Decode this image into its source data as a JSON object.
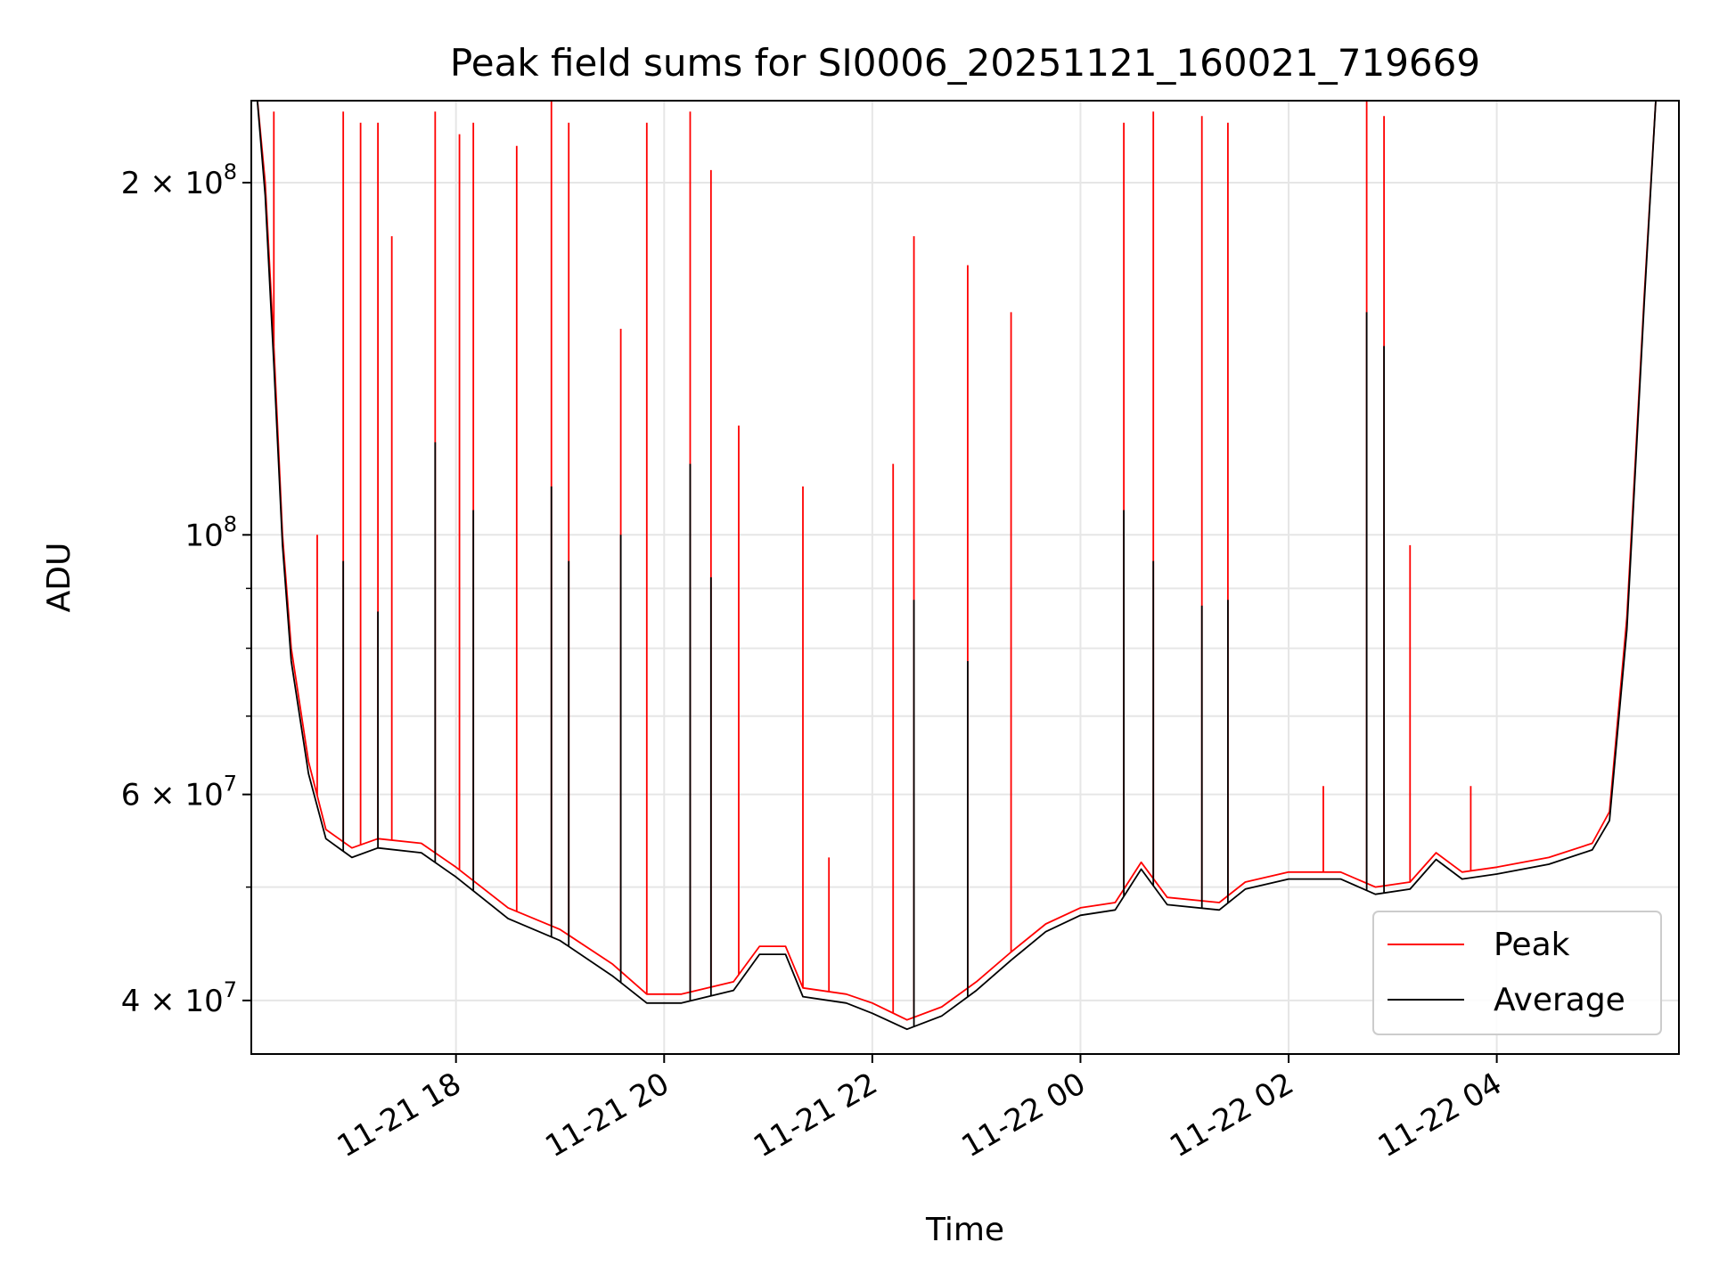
{
  "chart_data": {
    "type": "line",
    "title": "Peak field sums for SI0006_20251121_160021_719669",
    "xlabel": "Time",
    "ylabel": "ADU",
    "yscale": "log",
    "ylim": [
      36000000,
      235000000
    ],
    "xlim": [
      "2025-11-21 16:02",
      "2025-11-22 05:45"
    ],
    "grid": true,
    "legend_position": "lower-right",
    "x_ticks": [
      {
        "x": "2025-11-21 18:00",
        "label": "11-21 18"
      },
      {
        "x": "2025-11-21 20:00",
        "label": "11-21 20"
      },
      {
        "x": "2025-11-21 22:00",
        "label": "11-21 22"
      },
      {
        "x": "2025-11-22 00:00",
        "label": "11-22 00"
      },
      {
        "x": "2025-11-22 02:00",
        "label": "11-22 02"
      },
      {
        "x": "2025-11-22 04:00",
        "label": "11-22 04"
      }
    ],
    "y_ticks": [
      {
        "value": 40000000,
        "mantissa": "4",
        "exp": "7"
      },
      {
        "value": 60000000,
        "mantissa": "6",
        "exp": "7"
      },
      {
        "value": 100000000,
        "mantissa": "",
        "exp": "8"
      },
      {
        "value": 200000000,
        "mantissa": "2",
        "exp": "8"
      }
    ],
    "y_minor": [
      50000000,
      70000000,
      80000000,
      90000000
    ],
    "series": [
      {
        "name": "Peak",
        "color": "#ff0000",
        "baseline": [
          [
            "2025-11-21 16:05",
            240000000
          ],
          [
            "2025-11-21 16:10",
            200000000
          ],
          [
            "2025-11-21 16:15",
            145000000
          ],
          [
            "2025-11-21 16:20",
            100000000
          ],
          [
            "2025-11-21 16:25",
            80000000
          ],
          [
            "2025-11-21 16:35",
            64000000
          ],
          [
            "2025-11-21 16:45",
            56000000
          ],
          [
            "2025-11-21 17:00",
            54000000
          ],
          [
            "2025-11-21 17:15",
            55000000
          ],
          [
            "2025-11-21 17:40",
            54500000
          ],
          [
            "2025-11-21 18:00",
            52000000
          ],
          [
            "2025-11-21 18:30",
            48000000
          ],
          [
            "2025-11-21 19:00",
            46000000
          ],
          [
            "2025-11-21 19:30",
            43000000
          ],
          [
            "2025-11-21 19:50",
            40500000
          ],
          [
            "2025-11-21 20:10",
            40500000
          ],
          [
            "2025-11-21 20:40",
            41500000
          ],
          [
            "2025-11-21 20:55",
            44500000
          ],
          [
            "2025-11-21 21:10",
            44500000
          ],
          [
            "2025-11-21 21:20",
            41000000
          ],
          [
            "2025-11-21 21:45",
            40500000
          ],
          [
            "2025-11-21 22:00",
            39800000
          ],
          [
            "2025-11-21 22:20",
            38500000
          ],
          [
            "2025-11-21 22:40",
            39500000
          ],
          [
            "2025-11-21 23:00",
            41500000
          ],
          [
            "2025-11-21 23:20",
            44000000
          ],
          [
            "2025-11-21 23:40",
            46500000
          ],
          [
            "2025-11-22 00:00",
            48000000
          ],
          [
            "2025-11-22 00:20",
            48500000
          ],
          [
            "2025-11-22 00:35",
            52500000
          ],
          [
            "2025-11-22 00:50",
            49000000
          ],
          [
            "2025-11-22 01:20",
            48500000
          ],
          [
            "2025-11-22 01:35",
            50500000
          ],
          [
            "2025-11-22 02:00",
            51500000
          ],
          [
            "2025-11-22 02:30",
            51500000
          ],
          [
            "2025-11-22 02:50",
            50000000
          ],
          [
            "2025-11-22 03:10",
            50500000
          ],
          [
            "2025-11-22 03:25",
            53500000
          ],
          [
            "2025-11-22 03:40",
            51500000
          ],
          [
            "2025-11-22 04:00",
            52000000
          ],
          [
            "2025-11-22 04:30",
            53000000
          ],
          [
            "2025-11-22 04:55",
            54500000
          ],
          [
            "2025-11-22 05:05",
            58000000
          ],
          [
            "2025-11-22 05:15",
            85000000
          ],
          [
            "2025-11-22 05:25",
            160000000
          ],
          [
            "2025-11-22 05:32",
            240000000
          ]
        ],
        "spikes": [
          [
            "2025-11-21 16:15",
            230000000
          ],
          [
            "2025-11-21 16:40",
            100000000
          ],
          [
            "2025-11-21 16:55",
            230000000
          ],
          [
            "2025-11-21 17:05",
            225000000
          ],
          [
            "2025-11-21 17:15",
            225000000
          ],
          [
            "2025-11-21 17:23",
            180000000
          ],
          [
            "2025-11-21 17:48",
            230000000
          ],
          [
            "2025-11-21 18:02",
            220000000
          ],
          [
            "2025-11-21 18:10",
            225000000
          ],
          [
            "2025-11-21 18:35",
            215000000
          ],
          [
            "2025-11-21 18:55",
            235000000
          ],
          [
            "2025-11-21 19:05",
            225000000
          ],
          [
            "2025-11-21 19:35",
            150000000
          ],
          [
            "2025-11-21 19:50",
            225000000
          ],
          [
            "2025-11-21 20:15",
            230000000
          ],
          [
            "2025-11-21 20:27",
            205000000
          ],
          [
            "2025-11-21 20:43",
            124000000
          ],
          [
            "2025-11-21 21:20",
            110000000
          ],
          [
            "2025-11-21 21:35",
            53000000
          ],
          [
            "2025-11-21 22:12",
            115000000
          ],
          [
            "2025-11-21 22:24",
            180000000
          ],
          [
            "2025-11-21 22:55",
            170000000
          ],
          [
            "2025-11-21 23:20",
            155000000
          ],
          [
            "2025-11-22 00:25",
            225000000
          ],
          [
            "2025-11-22 00:42",
            230000000
          ],
          [
            "2025-11-22 01:10",
            228000000
          ],
          [
            "2025-11-22 01:25",
            225000000
          ],
          [
            "2025-11-22 02:20",
            61000000
          ],
          [
            "2025-11-22 02:45",
            235000000
          ],
          [
            "2025-11-22 02:55",
            228000000
          ],
          [
            "2025-11-22 03:10",
            98000000
          ],
          [
            "2025-11-22 03:45",
            61000000
          ]
        ]
      },
      {
        "name": "Average",
        "color": "#000000",
        "baseline": [
          [
            "2025-11-21 16:05",
            240000000
          ],
          [
            "2025-11-21 16:10",
            195000000
          ],
          [
            "2025-11-21 16:15",
            140000000
          ],
          [
            "2025-11-21 16:20",
            98000000
          ],
          [
            "2025-11-21 16:25",
            78000000
          ],
          [
            "2025-11-21 16:35",
            62500000
          ],
          [
            "2025-11-21 16:45",
            55000000
          ],
          [
            "2025-11-21 17:00",
            53000000
          ],
          [
            "2025-11-21 17:15",
            54000000
          ],
          [
            "2025-11-21 17:40",
            53500000
          ],
          [
            "2025-11-21 18:00",
            51000000
          ],
          [
            "2025-11-21 18:30",
            47000000
          ],
          [
            "2025-11-21 19:00",
            45000000
          ],
          [
            "2025-11-21 19:30",
            42000000
          ],
          [
            "2025-11-21 19:50",
            39800000
          ],
          [
            "2025-11-21 20:10",
            39800000
          ],
          [
            "2025-11-21 20:40",
            40800000
          ],
          [
            "2025-11-21 20:55",
            43800000
          ],
          [
            "2025-11-21 21:10",
            43800000
          ],
          [
            "2025-11-21 21:20",
            40300000
          ],
          [
            "2025-11-21 21:45",
            39800000
          ],
          [
            "2025-11-21 22:00",
            39000000
          ],
          [
            "2025-11-21 22:20",
            37800000
          ],
          [
            "2025-11-21 22:40",
            38800000
          ],
          [
            "2025-11-21 23:00",
            40800000
          ],
          [
            "2025-11-21 23:20",
            43300000
          ],
          [
            "2025-11-21 23:40",
            45800000
          ],
          [
            "2025-11-22 00:00",
            47300000
          ],
          [
            "2025-11-22 00:20",
            47800000
          ],
          [
            "2025-11-22 00:35",
            51800000
          ],
          [
            "2025-11-22 00:50",
            48300000
          ],
          [
            "2025-11-22 01:20",
            47800000
          ],
          [
            "2025-11-22 01:35",
            49800000
          ],
          [
            "2025-11-22 02:00",
            50800000
          ],
          [
            "2025-11-22 02:30",
            50800000
          ],
          [
            "2025-11-22 02:50",
            49300000
          ],
          [
            "2025-11-22 03:10",
            49800000
          ],
          [
            "2025-11-22 03:25",
            52800000
          ],
          [
            "2025-11-22 03:40",
            50800000
          ],
          [
            "2025-11-22 04:00",
            51300000
          ],
          [
            "2025-11-22 04:30",
            52300000
          ],
          [
            "2025-11-22 04:55",
            53800000
          ],
          [
            "2025-11-22 05:05",
            57000000
          ],
          [
            "2025-11-22 05:15",
            83000000
          ],
          [
            "2025-11-22 05:25",
            158000000
          ],
          [
            "2025-11-22 05:32",
            240000000
          ]
        ],
        "spikes": [
          [
            "2025-11-21 16:55",
            95000000
          ],
          [
            "2025-11-21 17:15",
            86000000
          ],
          [
            "2025-11-21 17:48",
            120000000
          ],
          [
            "2025-11-21 18:10",
            105000000
          ],
          [
            "2025-11-21 18:55",
            110000000
          ],
          [
            "2025-11-21 19:05",
            95000000
          ],
          [
            "2025-11-21 19:35",
            100000000
          ],
          [
            "2025-11-21 20:15",
            115000000
          ],
          [
            "2025-11-21 20:27",
            92000000
          ],
          [
            "2025-11-21 22:24",
            88000000
          ],
          [
            "2025-11-21 22:55",
            78000000
          ],
          [
            "2025-11-22 00:25",
            105000000
          ],
          [
            "2025-11-22 00:42",
            95000000
          ],
          [
            "2025-11-22 01:10",
            87000000
          ],
          [
            "2025-11-22 01:25",
            88000000
          ],
          [
            "2025-11-22 02:45",
            155000000
          ],
          [
            "2025-11-22 02:55",
            145000000
          ]
        ]
      }
    ]
  }
}
